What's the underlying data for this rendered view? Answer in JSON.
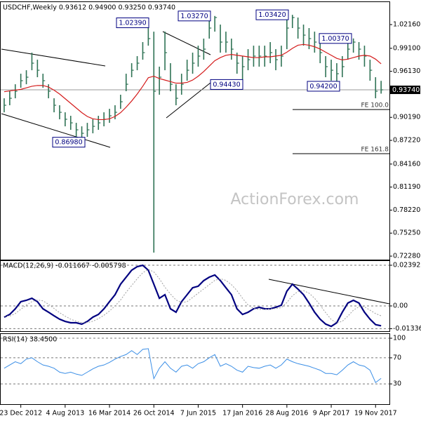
{
  "chart_data": [
    {
      "type": "ohlc",
      "title": "USDCHF,Weekly 0.93612 0.94900 0.93250 0.93740",
      "categories": [
        null,
        null,
        null,
        "23 Dec 2012",
        null,
        null,
        null,
        null,
        null,
        null,
        null,
        "4 Aug 2013",
        null,
        null,
        null,
        null,
        null,
        null,
        null,
        "16 Mar 2014",
        null,
        null,
        null,
        null,
        null,
        null,
        null,
        "26 Oct 2014",
        null,
        null,
        null,
        null,
        null,
        null,
        null,
        "7 Jun 2015",
        null,
        null,
        null,
        null,
        null,
        null,
        null,
        "17 Jan 2016",
        null,
        null,
        null,
        null,
        null,
        null,
        null,
        "28 Aug 2016",
        null,
        null,
        null,
        null,
        null,
        null,
        null,
        "9 Apr 2017",
        null,
        null,
        null,
        null,
        null,
        null,
        null,
        "19 Nov 2017",
        null
      ],
      "high": [
        0.9265,
        0.9356,
        0.9446,
        0.9582,
        0.9627,
        0.9854,
        0.9763,
        0.9582,
        0.9446,
        0.9265,
        0.9175,
        0.9084,
        0.9039,
        0.8948,
        0.8903,
        0.8948,
        0.8994,
        0.9039,
        0.9084,
        0.9129,
        0.9175,
        0.9311,
        0.9582,
        0.9718,
        0.9809,
        0.999,
        1.0239,
        1.0125,
        0.9673,
        1.0125,
        0.9718,
        0.9446,
        0.9582,
        0.9763,
        0.9854,
        0.9944,
        1.0035,
        1.0307,
        1.0327,
        1.0216,
        1.0125,
        1.0035,
        0.9854,
        0.9809,
        0.9899,
        0.9944,
        0.9944,
        0.9944,
        0.999,
        0.9899,
        0.9944,
        1.0307,
        1.0342,
        1.0307,
        1.0216,
        1.0171,
        1.0125,
        0.999,
        0.9809,
        0.9763,
        0.9718,
        0.9809,
        1.0035,
        1.0037,
        0.999,
        0.9944,
        0.9763,
        0.9537,
        0.949
      ],
      "low": [
        0.9084,
        0.9175,
        0.9265,
        0.9401,
        0.9446,
        0.9627,
        0.9537,
        0.9401,
        0.9265,
        0.9084,
        0.8994,
        0.8903,
        0.8858,
        0.8767,
        0.8698,
        0.8767,
        0.8813,
        0.8858,
        0.8903,
        0.8948,
        0.8994,
        0.9129,
        0.9356,
        0.9537,
        0.9627,
        0.9763,
        0.9944,
        0.7273,
        0.9311,
        0.9627,
        0.9356,
        0.9175,
        0.9311,
        0.9492,
        0.9582,
        0.9673,
        0.9763,
        1.0035,
        1.0125,
        0.9854,
        0.9854,
        0.9763,
        0.9582,
        0.9443,
        0.9627,
        0.9673,
        0.9673,
        0.9673,
        0.9718,
        0.9627,
        0.9673,
        0.9899,
        1.0171,
        1.0035,
        0.9944,
        0.9899,
        0.9854,
        0.9718,
        0.9537,
        0.9492,
        0.942,
        0.9537,
        0.9763,
        0.9854,
        0.9763,
        0.9673,
        0.9492,
        0.9265,
        0.9325
      ],
      "close": [
        0.9175,
        0.9265,
        0.9356,
        0.9492,
        0.9537,
        0.9718,
        0.9627,
        0.9492,
        0.9356,
        0.9175,
        0.9084,
        0.8994,
        0.8948,
        0.8858,
        0.8813,
        0.8858,
        0.8903,
        0.8948,
        0.8994,
        0.9039,
        0.9084,
        0.922,
        0.9446,
        0.9627,
        0.9718,
        0.9854,
        1.0035,
        0.9356,
        0.9537,
        0.9854,
        0.9446,
        0.9265,
        0.9446,
        0.9627,
        0.9718,
        0.9809,
        0.9899,
        1.0171,
        1.0307,
        0.999,
        0.999,
        0.9899,
        0.9718,
        0.9673,
        0.9763,
        0.9809,
        0.9809,
        0.9809,
        0.9854,
        0.9763,
        0.9809,
        1.0171,
        1.0307,
        1.0171,
        1.008,
        1.0035,
        0.999,
        0.9854,
        0.9673,
        0.9627,
        0.9582,
        0.9673,
        0.9899,
        0.999,
        0.9899,
        0.9809,
        0.9627,
        0.9356,
        0.9374
      ],
      "color": "#2f7355",
      "overlays": [
        {
          "color": "#d41c1c",
          "values": [
            0.935,
            0.936,
            0.937,
            0.938,
            0.94,
            0.942,
            0.943,
            0.943,
            0.941,
            0.937,
            0.932,
            0.926,
            0.92,
            0.914,
            0.908,
            0.903,
            0.9,
            0.899,
            0.899,
            0.9,
            0.903,
            0.908,
            0.915,
            0.923,
            0.932,
            0.942,
            0.953,
            0.955,
            0.952,
            0.95,
            0.948,
            0.946,
            0.946,
            0.947,
            0.95,
            0.955,
            0.961,
            0.968,
            0.975,
            0.979,
            0.982,
            0.983,
            0.982,
            0.981,
            0.98,
            0.979,
            0.979,
            0.98,
            0.98,
            0.981,
            0.982,
            0.986,
            0.991,
            0.995,
            0.996,
            0.995,
            0.993,
            0.99,
            0.986,
            0.982,
            0.978,
            0.976,
            0.977,
            0.979,
            0.981,
            0.982,
            0.981,
            0.977,
            0.971
          ]
        }
      ],
      "ylim": [
        0.7192,
        1.0488
      ],
      "yticks": [
        {
          "value": 1.0216,
          "label": "1.02160"
        },
        {
          "value": 0.991,
          "label": "0.99100"
        },
        {
          "value": 0.9613,
          "label": "0.96130"
        },
        {
          "value": 0.9019,
          "label": "0.90190"
        },
        {
          "value": 0.8722,
          "label": "0.87220"
        },
        {
          "value": 0.8416,
          "label": "0.84160"
        },
        {
          "value": 0.8119,
          "label": "0.81190"
        },
        {
          "value": 0.7822,
          "label": "0.78220"
        },
        {
          "value": 0.7525,
          "label": "0.75250"
        },
        {
          "value": 0.7228,
          "label": "0.72280"
        }
      ],
      "annotations": [
        {
          "label": "1.02390",
          "value": 1.0239
        },
        {
          "label": "1.03270",
          "value": 1.0327
        },
        {
          "label": "1.03420",
          "value": 1.0342
        },
        {
          "label": "1.00370",
          "value": 1.0037
        },
        {
          "label": "0.94430",
          "value": 0.9443
        },
        {
          "label": "0.94200",
          "value": 0.942
        },
        {
          "label": "0.86980",
          "value": 0.8698
        }
      ],
      "levels": [
        {
          "label": "FE 100.0",
          "value": 0.912
        },
        {
          "label": "FE 161.8",
          "value": 0.855
        }
      ],
      "last_price": {
        "value": 0.9374,
        "label": "0.93740"
      },
      "watermark": "ActionForex.com"
    },
    {
      "type": "line",
      "title": "MACD(12,26,9) -0.011667 -0.005798",
      "series": [
        {
          "color": "#000080",
          "width": 2.2,
          "values": [
            -0.0066,
            -0.005,
            -0.0017,
            0.0025,
            0.0033,
            0.0045,
            0.0025,
            -0.0017,
            -0.0037,
            -0.0058,
            -0.0078,
            -0.0091,
            -0.0099,
            -0.0099,
            -0.0107,
            -0.0091,
            -0.0066,
            -0.005,
            -0.0017,
            0.0025,
            0.0066,
            0.0128,
            0.0169,
            0.021,
            0.0231,
            0.0239,
            0.021,
            0.0128,
            0.0045,
            0.0066,
            -0.0017,
            -0.0037,
            0.0025,
            0.0066,
            0.0107,
            0.0116,
            0.0149,
            0.0169,
            0.0182,
            0.0149,
            0.0107,
            0.0066,
            -0.0017,
            -0.005,
            -0.0037,
            -0.0017,
            -0.0008,
            -0.0017,
            -0.0017,
            -0.0008,
            0.0004,
            0.0087,
            0.0128,
            0.0099,
            0.0066,
            0.0017,
            -0.0037,
            -0.0078,
            -0.0107,
            -0.012,
            -0.0099,
            -0.0037,
            0.0017,
            0.0033,
            0.0017,
            -0.0037,
            -0.0078,
            -0.011,
            -0.011667
          ]
        },
        {
          "color": "#a0a0a0",
          "width": 1,
          "style": "dotted",
          "values": [
            -0.006,
            -0.006,
            -0.0045,
            -0.002,
            0.0005,
            0.0025,
            0.0035,
            0.003,
            0.001,
            -0.0015,
            -0.004,
            -0.006,
            -0.0078,
            -0.009,
            -0.0098,
            -0.0098,
            -0.009,
            -0.0075,
            -0.0055,
            -0.003,
            0.0,
            0.0035,
            0.008,
            0.012,
            0.016,
            0.0195,
            0.0215,
            0.02,
            0.016,
            0.011,
            0.007,
            0.0035,
            0.002,
            0.0025,
            0.005,
            0.0075,
            0.01,
            0.0125,
            0.015,
            0.016,
            0.015,
            0.0125,
            0.009,
            0.0045,
            0.0005,
            -0.0015,
            -0.002,
            -0.002,
            -0.0018,
            -0.0015,
            -0.001,
            0.002,
            0.006,
            0.0085,
            0.009,
            0.0075,
            0.0045,
            0.0005,
            -0.004,
            -0.008,
            -0.01,
            -0.009,
            -0.006,
            -0.0025,
            -0.0005,
            -0.0005,
            -0.0025,
            -0.0045,
            -0.005798
          ]
        }
      ],
      "ylim": [
        -0.01485,
        0.0264
      ],
      "yticks": [
        {
          "value": 0.023922,
          "label": "0.023922"
        },
        {
          "value": 0,
          "label": "0.00"
        },
        -0.013362
      ],
      "grid": "dashed"
    },
    {
      "type": "line",
      "title": "RSI(14) 38.4500",
      "series": [
        {
          "color": "#3a8ee6",
          "width": 1,
          "values": [
            54,
            59,
            64,
            61,
            68,
            70,
            64,
            59,
            57,
            54,
            48,
            46,
            48,
            45,
            43,
            48,
            53,
            57,
            59,
            63,
            68,
            72,
            75,
            81,
            75,
            83,
            84,
            38,
            54,
            64,
            54,
            48,
            57,
            59,
            54,
            61,
            64,
            70,
            75,
            57,
            61,
            57,
            51,
            48,
            57,
            55,
            54,
            57,
            59,
            54,
            59,
            68,
            64,
            61,
            59,
            57,
            54,
            51,
            46,
            46,
            44,
            51,
            59,
            64,
            59,
            57,
            51,
            32,
            38.45
          ]
        }
      ],
      "ylim": [
        0,
        106.5
      ],
      "yticks": [
        100,
        70,
        30
      ],
      "grid": "dashed"
    }
  ]
}
